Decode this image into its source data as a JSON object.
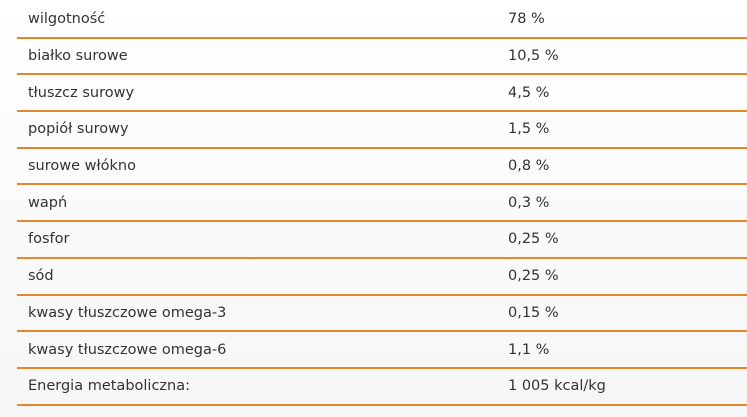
{
  "table": {
    "rows": [
      [
        "wilgotność",
        "78 %"
      ],
      [
        "białko surowe",
        "10,5 %"
      ],
      [
        "tłuszcz surowy",
        "4,5 %"
      ],
      [
        "popiół surowy",
        "1,5 %"
      ],
      [
        "surowe włókno",
        "0,8 %"
      ],
      [
        "wapń",
        "0,3 %"
      ],
      [
        "fosfor",
        "0,25 %"
      ],
      [
        "sód",
        "0,25 %"
      ],
      [
        "kwasy tłuszczowe omega-3",
        "0,15 %"
      ],
      [
        "kwasy tłuszczowe omega-6",
        "1,1 %"
      ],
      [
        "Energia metaboliczna:",
        "1 005 kcal/kg"
      ]
    ]
  }
}
